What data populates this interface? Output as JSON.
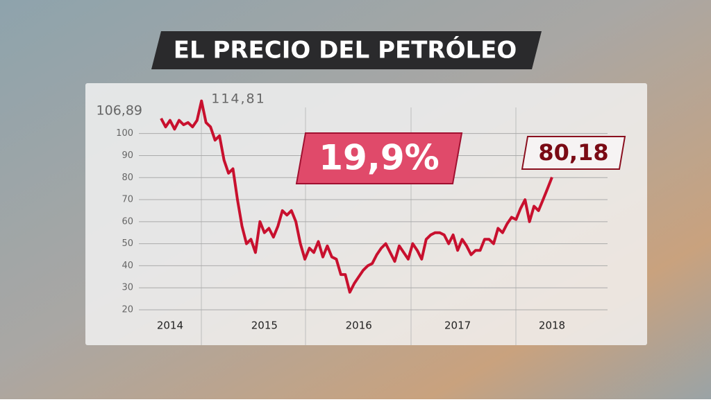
{
  "chart_data": {
    "type": "line",
    "title": "EL PRECIO DEL PETRÓLEO",
    "highlight": "19,9%",
    "categories": [
      null,
      null,
      "2014",
      null,
      null,
      null,
      null,
      null,
      null,
      null,
      null,
      null,
      null,
      null,
      null,
      null,
      null,
      null,
      null,
      null,
      null,
      null,
      null,
      "2015",
      null,
      null,
      null,
      null,
      null,
      null,
      null,
      null,
      null,
      null,
      null,
      null,
      null,
      null,
      null,
      null,
      null,
      null,
      null,
      null,
      "2016",
      null,
      null,
      null,
      null,
      null,
      null,
      null,
      null,
      null,
      null,
      null,
      null,
      null,
      null,
      null,
      null,
      null,
      null,
      null,
      null,
      null,
      "2017",
      null,
      null,
      null,
      null,
      null,
      null,
      null,
      null,
      null,
      null,
      null,
      null,
      null,
      null,
      null,
      null,
      null,
      null,
      null,
      null,
      "2018"
    ],
    "values": [
      106.89,
      103,
      106,
      102,
      106,
      104,
      105,
      103,
      106,
      114.81,
      105,
      103,
      97,
      99,
      88,
      82,
      84,
      70,
      58,
      50,
      52,
      46,
      60,
      55,
      57,
      53,
      58,
      65,
      63,
      65,
      60,
      50,
      43,
      48,
      46,
      51,
      44,
      49,
      44,
      43,
      36,
      36,
      28,
      32,
      35,
      38,
      40,
      41,
      45,
      48,
      50,
      46,
      42,
      49,
      46,
      43,
      50,
      47,
      43,
      52,
      54,
      55,
      55,
      54,
      50,
      54,
      47,
      52,
      49,
      45,
      47,
      47,
      52,
      52,
      50,
      57,
      55,
      59,
      62,
      61,
      66,
      70,
      60,
      67,
      65,
      70,
      75,
      80.18
    ],
    "value_labels": [
      "106,89",
      null,
      null,
      null,
      null,
      null,
      null,
      null,
      null,
      "114,81",
      null,
      null,
      null,
      null,
      null,
      null,
      null,
      null,
      null,
      null,
      null,
      null,
      null,
      null,
      null,
      null,
      null,
      null,
      null,
      null,
      null,
      null,
      null,
      null,
      null,
      null,
      null,
      null,
      null,
      null,
      null,
      null,
      null,
      null,
      null,
      null,
      null,
      null,
      null,
      null,
      null,
      null,
      null,
      null,
      null,
      null,
      null,
      null,
      null,
      null,
      null,
      null,
      null,
      null,
      null,
      null,
      null,
      null,
      null,
      null,
      null,
      null,
      null,
      null,
      null,
      null,
      null,
      null,
      null,
      null,
      null,
      null,
      null,
      null,
      null,
      null,
      null,
      "80,18"
    ],
    "color": "#c8102e",
    "ylim": [
      20,
      115
    ],
    "yticks": [
      20,
      30,
      40,
      50,
      60,
      70,
      80,
      90,
      100
    ],
    "grid": true
  }
}
